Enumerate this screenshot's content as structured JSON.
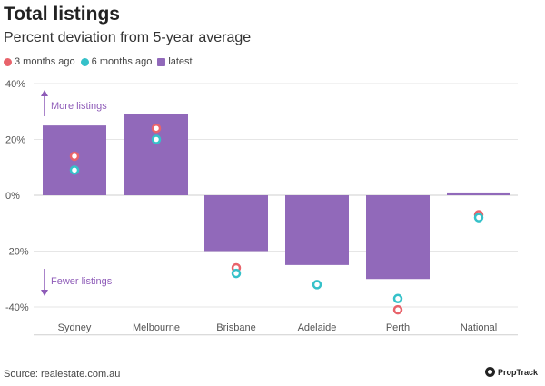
{
  "chart_data": {
    "type": "bar",
    "title": "Total listings",
    "subtitle": "Percent deviation from 5-year average",
    "categories": [
      "Sydney",
      "Melbourne",
      "Brisbane",
      "Adelaide",
      "Perth",
      "National"
    ],
    "series": [
      {
        "name": "3 months ago",
        "kind": "point",
        "color": "#e8636b",
        "values": [
          14,
          24,
          -26,
          null,
          -41,
          -7
        ]
      },
      {
        "name": "6 months ago",
        "kind": "point",
        "color": "#35c1c9",
        "values": [
          9,
          20,
          -28,
          -32,
          -37,
          -8
        ]
      },
      {
        "name": "latest",
        "kind": "bar",
        "color": "#9169ba",
        "values": [
          25,
          29,
          -20,
          -25,
          -30,
          1
        ]
      }
    ],
    "ylim": [
      -50,
      40
    ],
    "yticks": [
      40,
      20,
      0,
      -20,
      -40
    ],
    "ytick_labels": [
      "40%",
      "20%",
      "0%",
      "-20%",
      "-40%"
    ],
    "annotations": {
      "up": "More listings",
      "down": "Fewer listings"
    },
    "annotation_color": "#8e5bb8",
    "source": "Source: realestate.com.au",
    "brand": "PropTrack"
  }
}
